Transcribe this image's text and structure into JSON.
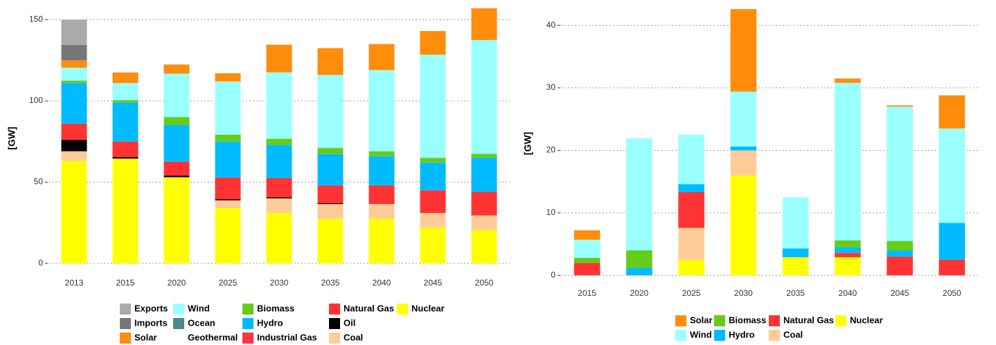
{
  "chart_data": [
    {
      "type": "bar",
      "stacked": true,
      "ylabel": "[GW]",
      "grid": true,
      "legend": "bottom",
      "categories": [
        "2013",
        "2015",
        "2020",
        "2025",
        "2030",
        "2035",
        "2040",
        "2045",
        "2050"
      ],
      "ylim": [
        -6,
        160
      ],
      "yticks": [
        0,
        50,
        100,
        150
      ],
      "series": [
        {
          "name": "Exports",
          "color": "#aaaaaa",
          "values": [
            15.5,
            0,
            0,
            0,
            0,
            0,
            0,
            0,
            0
          ]
        },
        {
          "name": "Imports",
          "color": "#777777",
          "values": [
            9.5,
            0,
            0,
            0,
            0,
            0,
            0,
            0,
            0
          ]
        },
        {
          "name": "Solar",
          "color": "#ff8c0a",
          "values": [
            4.5,
            6.5,
            5.6,
            5,
            17,
            16.5,
            16,
            14.5,
            19.5
          ]
        },
        {
          "name": "Wind",
          "color": "#99ffff",
          "values": [
            8,
            10.5,
            26.7,
            32.8,
            40.9,
            45,
            50,
            63.5,
            70
          ]
        },
        {
          "name": "Ocean",
          "color": "#4d8a8a",
          "values": [
            0,
            0,
            0,
            0,
            0,
            0,
            0,
            0,
            0
          ]
        },
        {
          "name": "Geothermal",
          "color": "#ffffff",
          "values": [
            0,
            0,
            0,
            0,
            0,
            0,
            0,
            0,
            0
          ]
        },
        {
          "name": "Biomass",
          "color": "#66cc1a",
          "values": [
            1.5,
            1.5,
            5,
            4.2,
            3.8,
            3.7,
            3,
            3,
            2.5
          ]
        },
        {
          "name": "Hydro",
          "color": "#00bbff",
          "values": [
            25,
            24,
            22.5,
            22.2,
            20.4,
            19.3,
            18,
            17,
            21
          ]
        },
        {
          "name": "Industrial Gas",
          "color": "#ff3344",
          "values": [
            0,
            0,
            0,
            0,
            0,
            0,
            0,
            0,
            0
          ]
        },
        {
          "name": "Natural Gas",
          "color": "#ff3333",
          "values": [
            10,
            9.5,
            8.6,
            13.3,
            11.8,
            11,
            11.5,
            14,
            14.5
          ]
        },
        {
          "name": "Oil",
          "color": "#000000",
          "values": [
            7,
            1,
            1,
            0.7,
            0.7,
            0.5,
            0,
            0,
            0
          ]
        },
        {
          "name": "Coal",
          "color": "#ffcc99",
          "values": [
            6,
            0.5,
            0,
            4.8,
            9,
            9,
            9,
            9,
            9
          ]
        },
        {
          "name": "Nuclear",
          "color": "#ffff00",
          "values": [
            63,
            64,
            53,
            34,
            31,
            27.5,
            27.5,
            22,
            20.5
          ]
        }
      ]
    },
    {
      "type": "bar",
      "stacked": true,
      "ylabel": "[GW]",
      "grid": true,
      "legend": "bottom",
      "categories": [
        "2015",
        "2020",
        "2025",
        "2030",
        "2035",
        "2040",
        "2045",
        "2050"
      ],
      "ylim": [
        -1.3,
        43.5
      ],
      "yticks": [
        0,
        10,
        20,
        30,
        40
      ],
      "series": [
        {
          "name": "Solar",
          "color": "#ff8c0a",
          "values": [
            1.5,
            0,
            0,
            13.2,
            0,
            0.7,
            0.2,
            5.3
          ]
        },
        {
          "name": "Wind",
          "color": "#99ffff",
          "values": [
            2.9,
            17.9,
            7.9,
            8.8,
            8.2,
            25.2,
            21.5,
            15.1
          ]
        },
        {
          "name": "Biomass",
          "color": "#66cc1a",
          "values": [
            0.8,
            2.8,
            0,
            0,
            0,
            1.1,
            1.5,
            0
          ]
        },
        {
          "name": "Hydro",
          "color": "#00bbff",
          "values": [
            0,
            1.2,
            1.3,
            0.6,
            1.4,
            0.9,
            1,
            5.9
          ]
        },
        {
          "name": "Natural Gas",
          "color": "#ff3333",
          "values": [
            2,
            0,
            5.7,
            0,
            0,
            0.7,
            3,
            2.5
          ]
        },
        {
          "name": "Coal",
          "color": "#ffcc99",
          "values": [
            0,
            0,
            5.1,
            4,
            0,
            0,
            0,
            0
          ]
        },
        {
          "name": "Nuclear",
          "color": "#ffff00",
          "values": [
            0,
            0,
            2.5,
            16,
            2.9,
            2.9,
            0,
            0
          ]
        }
      ]
    }
  ]
}
